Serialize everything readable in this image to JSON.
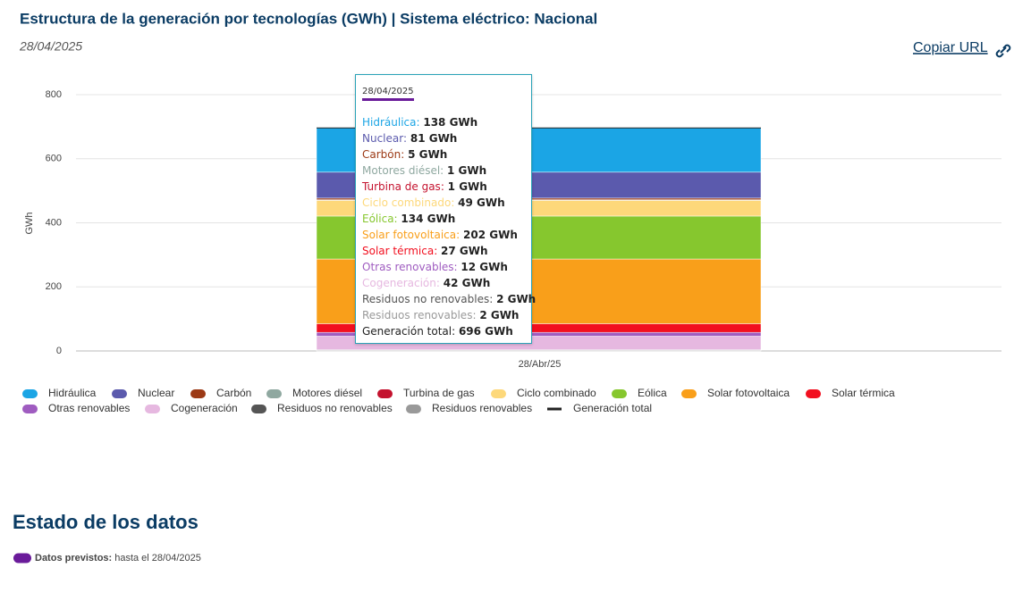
{
  "page": {
    "title": "Estructura de la generación por tecnologías (GWh) | Sistema eléctrico: Nacional",
    "date": "28/04/2025",
    "copy_link": "Copiar URL"
  },
  "chart_data": {
    "type": "bar",
    "stacked": true,
    "categories": [
      "28/Abr/25"
    ],
    "ylabel": "GWh",
    "ylim": [
      0,
      800
    ],
    "yticks": [
      0,
      200,
      400,
      600,
      800
    ],
    "grid": true,
    "tooltip_title": "28/04/2025",
    "series": [
      {
        "name": "Hidráulica",
        "color": "#1ba5e5",
        "values": [
          138
        ],
        "value_labels": [
          "138 GWh"
        ]
      },
      {
        "name": "Nuclear",
        "color": "#5b5aad",
        "values": [
          81
        ],
        "value_labels": [
          "81 GWh"
        ]
      },
      {
        "name": "Carbón",
        "color": "#9c3a16",
        "values": [
          5
        ],
        "value_labels": [
          "5 GWh"
        ]
      },
      {
        "name": "Motores diésel",
        "color": "#8fa8a0",
        "values": [
          1
        ],
        "value_labels": [
          "1 GWh"
        ]
      },
      {
        "name": "Turbina de gas",
        "color": "#c4122e",
        "values": [
          1
        ],
        "value_labels": [
          "1 GWh"
        ]
      },
      {
        "name": "Ciclo combinado",
        "color": "#fdd87a",
        "values": [
          49
        ],
        "value_labels": [
          "49 GWh"
        ]
      },
      {
        "name": "Eólica",
        "color": "#86c72e",
        "values": [
          134
        ],
        "value_labels": [
          "134 GWh"
        ]
      },
      {
        "name": "Solar fotovoltaica",
        "color": "#f99f1a",
        "values": [
          202
        ],
        "value_labels": [
          "202 GWh"
        ]
      },
      {
        "name": "Solar térmica",
        "color": "#f20f1f",
        "values": [
          27
        ],
        "value_labels": [
          "27 GWh"
        ]
      },
      {
        "name": "Otras renovables",
        "color": "#9f5cc0",
        "values": [
          12
        ],
        "value_labels": [
          "12 GWh"
        ]
      },
      {
        "name": "Cogeneración",
        "color": "#e6b8e0",
        "values": [
          42
        ],
        "value_labels": [
          "42 GWh"
        ]
      },
      {
        "name": "Residuos no renovables",
        "color": "#555555",
        "values": [
          2
        ],
        "value_labels": [
          "2 GWh"
        ]
      },
      {
        "name": "Residuos renovables",
        "color": "#999999",
        "values": [
          2
        ],
        "value_labels": [
          "2 GWh"
        ]
      },
      {
        "name": "Generación total",
        "color": "#222222",
        "type": "line",
        "values": [
          696
        ],
        "value_labels": [
          "696 GWh"
        ]
      }
    ]
  },
  "status": {
    "heading": "Estado de los datos",
    "items": [
      {
        "label": "Datos previstos:",
        "text": "hasta el 28/04/2025",
        "color": "#6a1b9a"
      }
    ]
  }
}
